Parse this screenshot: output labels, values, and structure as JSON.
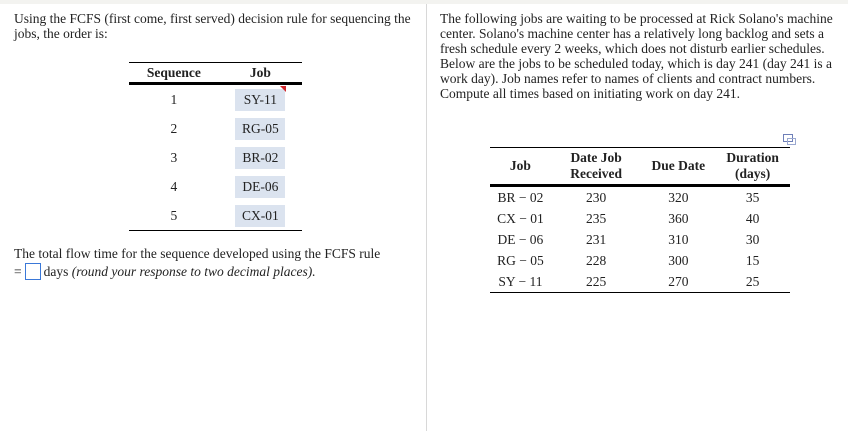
{
  "left": {
    "intro": "Using the FCFS (first come, first served) decision rule for sequencing the jobs, the order is:",
    "table": {
      "headers": [
        "Sequence",
        "Job"
      ],
      "rows": [
        [
          "1",
          "SY-11"
        ],
        [
          "2",
          "RG-05"
        ],
        [
          "3",
          "BR-02"
        ],
        [
          "4",
          "DE-06"
        ],
        [
          "5",
          "CX-01"
        ]
      ]
    },
    "question_prefix": "The total flow time for the sequence developed using the FCFS rule",
    "equals": "=",
    "answer_value": "",
    "unit": "days",
    "hint": "(round your response to two decimal places)."
  },
  "right": {
    "description": "The following jobs are waiting to be processed at Rick Solano's machine center. Solano's machine center has a relatively long backlog and sets a fresh schedule every 2 weeks, which does not disturb earlier schedules. Below are the jobs to be scheduled today, which is day 241 (day 241 is a work day). Job names refer to names of clients and contract numbers. Compute all times based on initiating work on day 241.",
    "icon": "popout-window-icon",
    "table": {
      "headers": [
        "Job",
        "Date Job Received",
        "Due Date",
        "Duration (days)"
      ],
      "rows": [
        [
          "BR − 02",
          "230",
          "320",
          "35"
        ],
        [
          "CX − 01",
          "235",
          "360",
          "40"
        ],
        [
          "DE − 06",
          "231",
          "310",
          "30"
        ],
        [
          "RG − 05",
          "228",
          "300",
          "15"
        ],
        [
          "SY − 11",
          "225",
          "270",
          "25"
        ]
      ]
    }
  }
}
